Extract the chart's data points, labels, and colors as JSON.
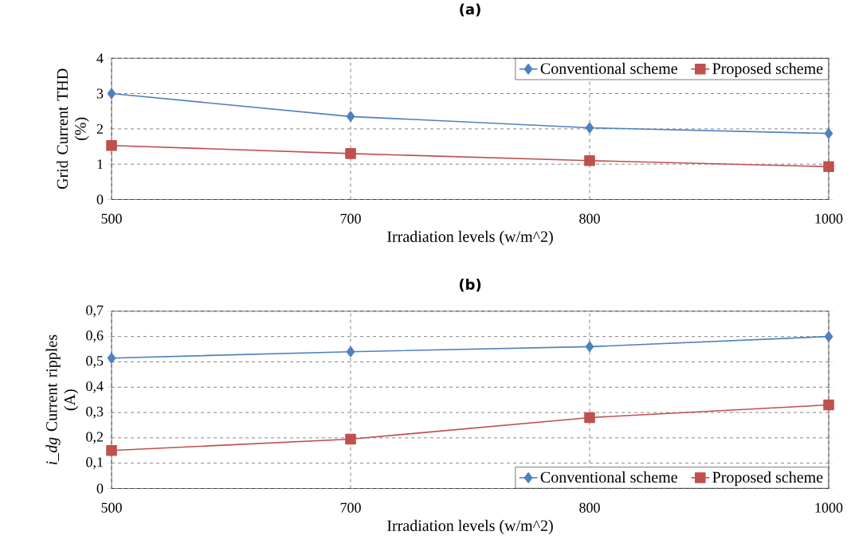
{
  "chart_data": [
    {
      "type": "line",
      "title": "(a)",
      "xlabel": "Irradiation levels (w/m^2)",
      "ylabel": "Grid Current THD\n(%)",
      "categories": [
        "500",
        "700",
        "800",
        "1000"
      ],
      "series": [
        {
          "name": "Conventional scheme",
          "color": "#4f81bd",
          "marker": "diamond",
          "values": [
            3.0,
            2.35,
            2.03,
            1.87
          ]
        },
        {
          "name": "Proposed scheme",
          "color": "#c0504d",
          "marker": "square",
          "values": [
            1.53,
            1.3,
            1.1,
            0.93
          ]
        }
      ],
      "ylim": [
        0,
        4
      ],
      "yticks": [
        0,
        1,
        2,
        3,
        4
      ],
      "grid": true,
      "legend": "top right"
    },
    {
      "type": "line",
      "title": "(b)",
      "xlabel": "Irradiation levels (w/m^2)",
      "ylabel": "*i_dg* Current ripples\n(A)",
      "categories": [
        "500",
        "700",
        "800",
        "1000"
      ],
      "series": [
        {
          "name": "Conventional scheme",
          "color": "#4f81bd",
          "marker": "diamond",
          "values": [
            0.515,
            0.54,
            0.56,
            0.6
          ]
        },
        {
          "name": "Proposed scheme",
          "color": "#c0504d",
          "marker": "square",
          "values": [
            0.15,
            0.195,
            0.28,
            0.33
          ]
        }
      ],
      "ylim": [
        0,
        0.7
      ],
      "yticks": [
        {
          "value": 0,
          "label": "0"
        },
        {
          "value": 0.1,
          "label": "0,1"
        },
        {
          "value": 0.2,
          "label": "0,2"
        },
        {
          "value": 0.3,
          "label": "0,3"
        },
        {
          "value": 0.4,
          "label": "0,4"
        },
        {
          "value": 0.5,
          "label": "0,5"
        },
        {
          "value": 0.6,
          "label": "0,6"
        },
        {
          "value": 0.7,
          "label": "0,7"
        }
      ],
      "grid": true,
      "legend": "bottom right"
    }
  ]
}
